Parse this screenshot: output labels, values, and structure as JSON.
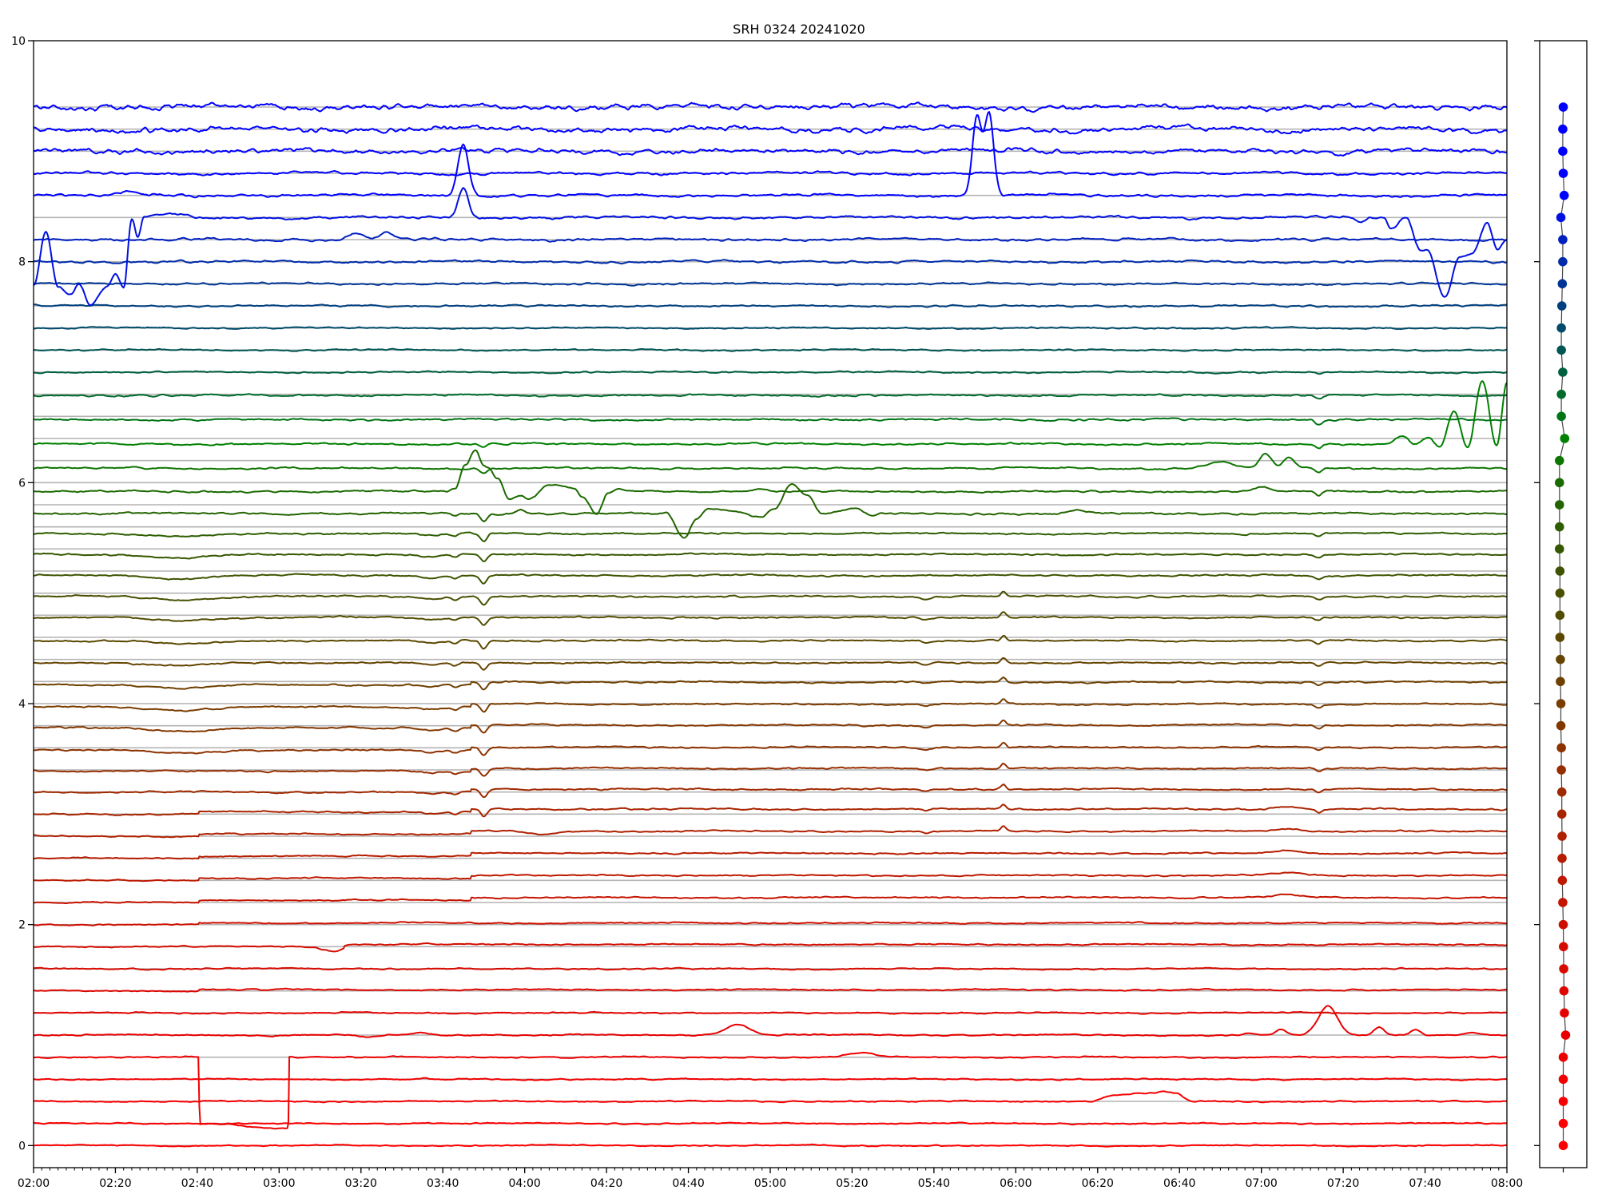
{
  "chart_data": {
    "type": "line",
    "title": "SRH 0324 20241020",
    "xlabel": "",
    "ylabel": "",
    "x_unit": "minutes after 02:00",
    "xlim": [
      0,
      360
    ],
    "ylim": [
      -0.2,
      10
    ],
    "xtick_labels": [
      "02:00",
      "02:20",
      "02:40",
      "03:00",
      "03:20",
      "03:40",
      "04:00",
      "04:20",
      "04:40",
      "05:00",
      "05:20",
      "05:40",
      "06:00",
      "06:20",
      "06:40",
      "07:00",
      "07:20",
      "07:40",
      "08:00"
    ],
    "xtick_step_minutes": 20,
    "xminor_step_minutes": 2,
    "yticks": [
      0,
      2,
      4,
      6,
      8,
      10
    ],
    "ytick_labels": [
      "0",
      "2",
      "4",
      "6",
      "8",
      "10"
    ],
    "gridlines": "horizontal at every trace offset (0 to 9.4, step 0.2)",
    "color_stops": [
      [
        0,
        "#ff0000"
      ],
      [
        1.0,
        "#e80000"
      ],
      [
        2.0,
        "#cc1000"
      ],
      [
        3.0,
        "#a82400"
      ],
      [
        4.0,
        "#7a3c00"
      ],
      [
        4.6,
        "#5a4800"
      ],
      [
        5.4,
        "#365800"
      ],
      [
        6.0,
        "#1a6a00"
      ],
      [
        6.4,
        "#008000"
      ],
      [
        7.0,
        "#006040"
      ],
      [
        7.6,
        "#004080"
      ],
      [
        8.2,
        "#0020c0"
      ],
      [
        8.6,
        "#0000ff"
      ],
      [
        9.4,
        "#0000ff"
      ]
    ],
    "gridline_color": "#b4b4b4",
    "common_events": [
      {
        "from": 3.0,
        "to": 5.6,
        "bumps": [
          [
            110,
            -0.07,
            0.8
          ],
          [
            103,
            -0.025,
            0.8
          ],
          [
            97,
            -0.02,
            2.5
          ],
          [
            314,
            -0.03,
            0.8
          ]
        ]
      },
      {
        "from": 2.8,
        "to": 5.0,
        "bumps": [
          [
            237,
            0.045,
            0.6
          ],
          [
            218,
            -0.02,
            1
          ]
        ]
      },
      {
        "from": 2.2,
        "to": 4.2,
        "steps": [
          [
            107,
            0.025
          ]
        ]
      },
      {
        "from": 3.6,
        "to": 5.8,
        "bumps": [
          [
            36,
            -0.03,
            7
          ]
        ]
      },
      {
        "from": 2.2,
        "to": 3.0,
        "steps": [
          [
            40.5,
            0.02
          ]
        ],
        "bumps": [
          [
            306,
            0.025,
            3
          ]
        ]
      }
    ],
    "series": [
      {
        "level": 0.0,
        "noise": 0.006
      },
      {
        "level": 0.2,
        "noise": 0.006
      },
      {
        "level": 0.4,
        "noise": 0.006,
        "path": [
          [
            258,
            0
          ],
          [
            264,
            0.055
          ],
          [
            270,
            0.07
          ],
          [
            276,
            0.08
          ],
          [
            279,
            0.07
          ],
          [
            283,
            0
          ]
        ]
      },
      {
        "level": 0.6,
        "noise": 0.006
      },
      {
        "level": 0.8,
        "noise": 0.006,
        "bumps": [
          [
            202.3,
            0.04,
            3
          ]
        ],
        "path": [
          [
            40.3,
            0
          ],
          [
            40.6,
            -0.6
          ],
          [
            62.2,
            -0.645
          ],
          [
            62.5,
            0
          ]
        ]
      },
      {
        "level": 1.0,
        "noise": 0.006,
        "bumps": [
          [
            172,
            0.1,
            3
          ],
          [
            297,
            0.015,
            1.5
          ],
          [
            304.8,
            0.05,
            1.2
          ],
          [
            316.3,
            0.26,
            2.3
          ],
          [
            328.8,
            0.07,
            1.2
          ],
          [
            337.6,
            0.05,
            1.2
          ],
          [
            351.8,
            0.02,
            1.5
          ],
          [
            82,
            -0.02,
            2.5
          ],
          [
            95,
            0.02,
            2
          ]
        ]
      },
      {
        "level": 1.2,
        "noise": 0.006,
        "bumps": [
          [
            80,
            0.01,
            3
          ]
        ]
      },
      {
        "level": 1.4,
        "noise": 0.006,
        "steps": [
          [
            40.5,
            0.01
          ]
        ]
      },
      {
        "level": 1.6,
        "noise": 0.006
      },
      {
        "level": 1.8,
        "noise": 0.006,
        "bumps": [
          [
            73,
            -0.04,
            2
          ]
        ],
        "steps": [
          [
            76,
            0.02
          ]
        ]
      },
      {
        "level": 2.0,
        "noise": 0.006,
        "steps": [
          [
            40.5,
            0.015
          ]
        ]
      },
      {
        "level": 2.2,
        "noise": 0.006
      },
      {
        "level": 2.4,
        "noise": 0.006
      },
      {
        "level": 2.6,
        "noise": 0.006
      },
      {
        "level": 2.8,
        "noise": 0.006,
        "bumps": [
          [
            124,
            -0.03,
            3
          ]
        ]
      },
      {
        "level": 3.0,
        "noise": 0.007
      },
      {
        "level": 3.2,
        "noise": 0.007
      },
      {
        "level": 3.39,
        "noise": 0.007
      },
      {
        "level": 3.58,
        "noise": 0.007
      },
      {
        "level": 3.78,
        "noise": 0.007
      },
      {
        "level": 3.97,
        "noise": 0.007
      },
      {
        "level": 4.17,
        "noise": 0.007
      },
      {
        "level": 4.37,
        "noise": 0.007
      },
      {
        "level": 4.57,
        "noise": 0.007
      },
      {
        "level": 4.78,
        "noise": 0.007
      },
      {
        "level": 4.97,
        "noise": 0.007
      },
      {
        "level": 5.16,
        "noise": 0.007
      },
      {
        "level": 5.35,
        "noise": 0.007
      },
      {
        "level": 5.54,
        "noise": 0.007
      },
      {
        "level": 5.72,
        "noise": 0.008,
        "bumps": [
          [
            110,
            -0.07,
            0.8
          ],
          [
            103,
            -0.02,
            0.8
          ],
          [
            119,
            0.04,
            1
          ],
          [
            255,
            0.03,
            2
          ]
        ],
        "path": [
          [
            150,
            0
          ],
          [
            154.6,
            0
          ],
          [
            159,
            -0.22
          ],
          [
            162,
            -0.05
          ],
          [
            165,
            0.05
          ],
          [
            170,
            0.03
          ],
          [
            177.7,
            -0.03
          ],
          [
            181,
            0.05
          ],
          [
            185.3,
            0.27
          ],
          [
            189,
            0.17
          ],
          [
            192.7,
            0
          ],
          [
            201,
            0.04
          ],
          [
            204.6,
            -0.02
          ],
          [
            207,
            0
          ]
        ]
      },
      {
        "level": 5.92,
        "noise": 0.008,
        "bumps": [
          [
            177,
            0.02,
            2
          ],
          [
            300,
            0.04,
            2
          ],
          [
            314,
            -0.04,
            0.8
          ]
        ],
        "path": [
          [
            100,
            0
          ],
          [
            103,
            0.02
          ],
          [
            105.5,
            0.25
          ],
          [
            108,
            0.38
          ],
          [
            110,
            0.24
          ],
          [
            111,
            0.22
          ],
          [
            113.4,
            0.12
          ],
          [
            116.2,
            -0.07
          ],
          [
            119,
            -0.04
          ],
          [
            121,
            -0.07
          ],
          [
            126,
            0.06
          ],
          [
            132,
            0.03
          ],
          [
            134,
            -0.05
          ],
          [
            137.6,
            -0.2
          ],
          [
            140.4,
            -0.02
          ],
          [
            143,
            0.02
          ],
          [
            146,
            0
          ]
        ]
      },
      {
        "level": 6.13,
        "noise": 0.008,
        "bumps": [
          [
            290,
            0.06,
            3
          ],
          [
            301,
            0.13,
            1.5
          ],
          [
            306.7,
            0.1,
            1.3
          ],
          [
            110,
            -0.04,
            0.8
          ],
          [
            314,
            -0.04,
            0.8
          ]
        ]
      },
      {
        "level": 6.35,
        "noise": 0.008,
        "bumps": [
          [
            110,
            -0.03,
            0.8
          ],
          [
            314,
            -0.04,
            0.8
          ]
        ],
        "path": [
          [
            330,
            0
          ],
          [
            334.8,
            0.07
          ],
          [
            337.5,
            0
          ],
          [
            340.7,
            0.05
          ],
          [
            343.6,
            -0.03
          ],
          [
            347.1,
            0.29
          ],
          [
            350.4,
            -0.03
          ],
          [
            354,
            0.57
          ],
          [
            357.5,
            -0.02
          ],
          [
            360,
            0.55
          ]
        ]
      },
      {
        "level": 6.57,
        "noise": 0.008,
        "bumps": [
          [
            314,
            -0.04,
            0.8
          ]
        ]
      },
      {
        "level": 6.79,
        "noise": 0.008,
        "bumps": [
          [
            314,
            -0.03,
            0.8
          ]
        ]
      },
      {
        "level": 7.0,
        "noise": 0.007,
        "bumps": [
          [
            314,
            -0.02,
            0.8
          ]
        ]
      },
      {
        "level": 7.2,
        "noise": 0.007
      },
      {
        "level": 7.4,
        "noise": 0.007
      },
      {
        "level": 7.6,
        "noise": 0.008
      },
      {
        "level": 7.8,
        "noise": 0.009
      },
      {
        "level": 8.0,
        "noise": 0.01
      },
      {
        "level": 8.2,
        "noise": 0.011,
        "bumps": [
          [
            79,
            0.07,
            1.8
          ],
          [
            86,
            0.06,
            1.5
          ]
        ]
      },
      {
        "level": 8.4,
        "noise": 0.011,
        "bumps": [
          [
            105,
            0.27,
            1.2
          ],
          [
            33,
            0.02,
            2
          ],
          [
            37,
            0.02,
            1.5
          ]
        ],
        "path": [
          [
            0,
            -0.6
          ],
          [
            3,
            -0.13
          ],
          [
            6,
            -0.62
          ],
          [
            9,
            -0.7
          ],
          [
            11,
            -0.6
          ],
          [
            14,
            -0.78
          ],
          [
            18,
            -0.62
          ],
          [
            20,
            -0.52
          ],
          [
            22,
            -0.64
          ],
          [
            24,
            -0.02
          ],
          [
            25.5,
            -0.18
          ],
          [
            27,
            0
          ],
          [
            30,
            0.02
          ],
          [
            32,
            0
          ],
          [
            322,
            0
          ],
          [
            324,
            -0.04
          ],
          [
            327,
            0
          ],
          [
            330,
            0
          ],
          [
            331.6,
            -0.1
          ],
          [
            335.3,
            0
          ],
          [
            339,
            -0.3
          ],
          [
            340.5,
            -0.28
          ],
          [
            344.8,
            -0.71
          ],
          [
            348.5,
            -0.35
          ],
          [
            351.5,
            -0.32
          ],
          [
            355.2,
            -0.05
          ],
          [
            357.7,
            -0.3
          ],
          [
            360,
            -0.2
          ]
        ]
      },
      {
        "level": 8.6,
        "noise": 0.012,
        "bumps": [
          [
            105,
            0.47,
            1.3
          ],
          [
            230.5,
            0.72,
            1.1
          ],
          [
            233.5,
            0.74,
            1.1
          ],
          [
            23,
            0.03,
            1.5
          ]
        ]
      },
      {
        "level": 8.8,
        "noise": 0.012
      },
      {
        "level": 9.0,
        "noise": 0.022
      },
      {
        "level": 9.2,
        "noise": 0.024
      },
      {
        "level": 9.4,
        "noise": 0.026
      }
    ],
    "marker_panel": {
      "xlim": [
        -1,
        1
      ],
      "x_values": [
        0,
        0,
        0,
        0,
        0,
        0.1,
        0.05,
        0.03,
        0.02,
        0.01,
        0,
        -0.02,
        -0.04,
        -0.05,
        -0.05,
        -0.06,
        -0.06,
        -0.08,
        -0.08,
        -0.1,
        -0.1,
        -0.12,
        -0.12,
        -0.14,
        -0.14,
        -0.14,
        -0.14,
        -0.16,
        -0.16,
        -0.16,
        -0.16,
        -0.16,
        0.06,
        -0.08,
        -0.08,
        -0.02,
        -0.08,
        -0.08,
        -0.06,
        -0.04,
        -0.02,
        -0.02,
        -0.1,
        0.04,
        0,
        -0.02,
        -0.02,
        0
      ]
    }
  }
}
